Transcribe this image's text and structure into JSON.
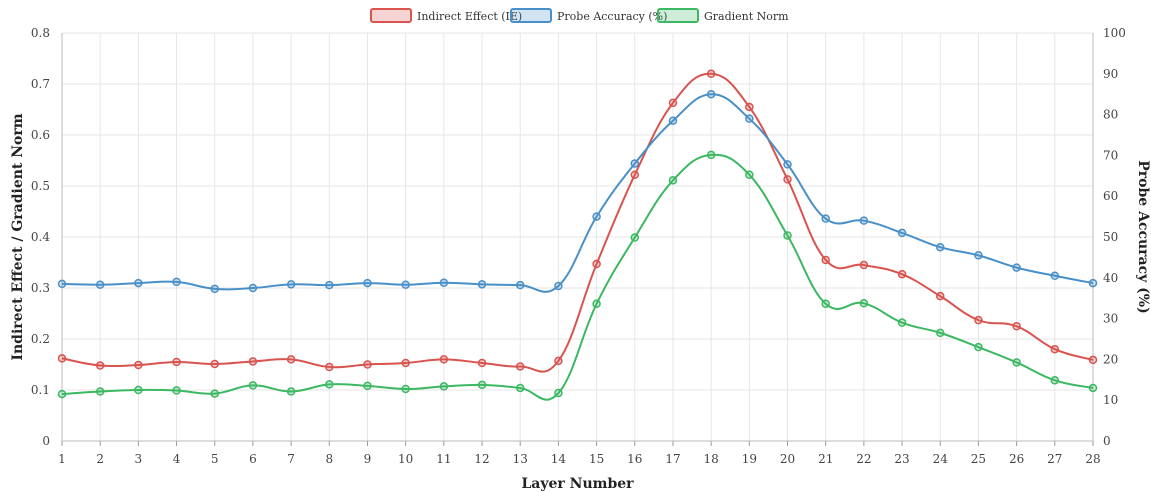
{
  "chart_data": {
    "type": "line",
    "xlabel": "Layer Number",
    "ylabel_left": "Indirect Effect / Gradient Norm",
    "ylabel_right": "Probe Accuracy (%)",
    "x": [
      1,
      2,
      3,
      4,
      5,
      6,
      7,
      8,
      9,
      10,
      11,
      12,
      13,
      14,
      15,
      16,
      17,
      18,
      19,
      20,
      21,
      22,
      23,
      24,
      25,
      26,
      27,
      28
    ],
    "ylim_left": [
      0,
      0.8
    ],
    "yticks_left": [
      "0",
      "0.1",
      "0.2",
      "0.3",
      "0.4",
      "0.5",
      "0.6",
      "0.7",
      "0.8"
    ],
    "ylim_right": [
      0,
      100
    ],
    "yticks_right": [
      "0",
      "10",
      "20",
      "30",
      "40",
      "50",
      "60",
      "70",
      "80",
      "90",
      "100"
    ],
    "grid": true,
    "legend_position": "top-center",
    "series": [
      {
        "name": "Indirect Effect (IE)",
        "axis": "left",
        "color": "#d9534f",
        "values": [
          0.162,
          0.148,
          0.149,
          0.155,
          0.151,
          0.156,
          0.16,
          0.145,
          0.15,
          0.153,
          0.16,
          0.153,
          0.146,
          0.157,
          0.347,
          0.522,
          0.663,
          0.72,
          0.655,
          0.513,
          0.355,
          0.345,
          0.327,
          0.284,
          0.237,
          0.225,
          0.18,
          0.159
        ]
      },
      {
        "name": "Probe Accuracy (%)",
        "axis": "right",
        "color": "#4a90c8",
        "values": [
          38.5,
          38.3,
          38.7,
          39.0,
          37.3,
          37.5,
          38.4,
          38.2,
          38.7,
          38.3,
          38.8,
          38.4,
          38.2,
          38.0,
          55.0,
          68.0,
          78.5,
          85.0,
          79.0,
          67.8,
          54.5,
          54.0,
          51.0,
          47.5,
          45.5,
          42.5,
          40.5,
          38.7
        ]
      },
      {
        "name": "Gradient Norm",
        "axis": "left",
        "color": "#3cb862",
        "values": [
          0.092,
          0.097,
          0.1,
          0.099,
          0.093,
          0.109,
          0.097,
          0.111,
          0.108,
          0.102,
          0.107,
          0.11,
          0.104,
          0.094,
          0.269,
          0.399,
          0.511,
          0.561,
          0.522,
          0.403,
          0.269,
          0.27,
          0.232,
          0.212,
          0.184,
          0.154,
          0.119,
          0.104
        ]
      }
    ]
  }
}
